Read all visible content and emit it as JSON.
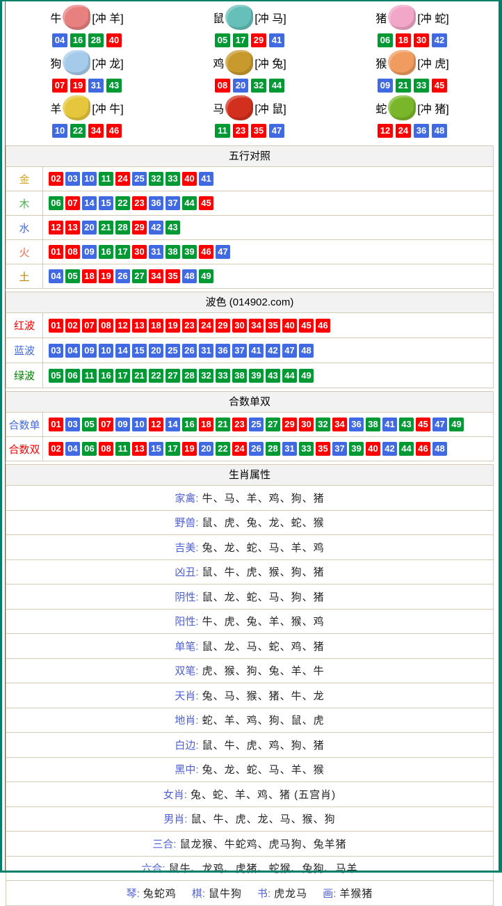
{
  "colors": {
    "frame_teal": "#00806b",
    "table_border": "#d6cbb2",
    "header_bg": "#f2f2f2",
    "chip_red": "#fb0000",
    "chip_blue": "#4169e1",
    "chip_green": "#009933",
    "attr_label_blue": "#4f5fd8"
  },
  "wave": {
    "red": [
      "01",
      "02",
      "07",
      "08",
      "12",
      "13",
      "18",
      "19",
      "23",
      "24",
      "29",
      "30",
      "34",
      "35",
      "40",
      "45",
      "46"
    ],
    "blue": [
      "03",
      "04",
      "09",
      "10",
      "14",
      "15",
      "20",
      "25",
      "26",
      "31",
      "36",
      "37",
      "41",
      "42",
      "47",
      "48"
    ],
    "green": [
      "05",
      "06",
      "11",
      "16",
      "17",
      "21",
      "22",
      "27",
      "28",
      "32",
      "33",
      "38",
      "39",
      "43",
      "44",
      "49"
    ]
  },
  "zodiac": {
    "cells": [
      {
        "name": "牛",
        "chong": "[冲 羊]",
        "icon": "ox-icon",
        "icon_color": "#e88080",
        "numbers": [
          "04",
          "16",
          "28",
          "40"
        ]
      },
      {
        "name": "鼠",
        "chong": "[冲 马]",
        "icon": "rat-icon",
        "icon_color": "#66bfb8",
        "numbers": [
          "05",
          "17",
          "29",
          "41"
        ]
      },
      {
        "name": "猪",
        "chong": "[冲 蛇]",
        "icon": "pig-icon",
        "icon_color": "#f2a6c8",
        "numbers": [
          "06",
          "18",
          "30",
          "42"
        ]
      },
      {
        "name": "狗",
        "chong": "[冲 龙]",
        "icon": "dog-icon",
        "icon_color": "#a6cbea",
        "numbers": [
          "07",
          "19",
          "31",
          "43"
        ]
      },
      {
        "name": "鸡",
        "chong": "[冲 兔]",
        "icon": "rooster-icon",
        "icon_color": "#c89a2e",
        "numbers": [
          "08",
          "20",
          "32",
          "44"
        ]
      },
      {
        "name": "猴",
        "chong": "[冲 虎]",
        "icon": "monkey-icon",
        "icon_color": "#f09b5f",
        "numbers": [
          "09",
          "21",
          "33",
          "45"
        ]
      },
      {
        "name": "羊",
        "chong": "[冲 牛]",
        "icon": "goat-icon",
        "icon_color": "#e6c63c",
        "numbers": [
          "10",
          "22",
          "34",
          "46"
        ]
      },
      {
        "name": "马",
        "chong": "[冲 鼠]",
        "icon": "horse-icon",
        "icon_color": "#d22f1e",
        "numbers": [
          "11",
          "23",
          "35",
          "47"
        ]
      },
      {
        "name": "蛇",
        "chong": "[冲 猪]",
        "icon": "snake-icon",
        "icon_color": "#7ab62a",
        "numbers": [
          "12",
          "24",
          "36",
          "48"
        ]
      }
    ]
  },
  "wuxing": {
    "title": "五行对照",
    "rows": [
      {
        "label": "金",
        "label_color": "#DAA520",
        "numbers": [
          "02",
          "03",
          "10",
          "11",
          "24",
          "25",
          "32",
          "33",
          "40",
          "41"
        ]
      },
      {
        "label": "木",
        "label_color": "#4CAF50",
        "numbers": [
          "06",
          "07",
          "14",
          "15",
          "22",
          "23",
          "36",
          "37",
          "44",
          "45"
        ]
      },
      {
        "label": "水",
        "label_color": "#4169E1",
        "numbers": [
          "12",
          "13",
          "20",
          "21",
          "28",
          "29",
          "42",
          "43"
        ]
      },
      {
        "label": "火",
        "label_color": "#F4694C",
        "numbers": [
          "01",
          "08",
          "09",
          "16",
          "17",
          "30",
          "31",
          "38",
          "39",
          "46",
          "47"
        ]
      },
      {
        "label": "土",
        "label_color": "#B8860B",
        "numbers": [
          "04",
          "05",
          "18",
          "19",
          "26",
          "27",
          "34",
          "35",
          "48",
          "49"
        ]
      }
    ]
  },
  "bose": {
    "title": "波色 (014902.com)",
    "rows": [
      {
        "label": "红波",
        "label_color": "#FE0000",
        "numbers": [
          "01",
          "02",
          "07",
          "08",
          "12",
          "13",
          "18",
          "19",
          "23",
          "24",
          "29",
          "30",
          "34",
          "35",
          "40",
          "45",
          "46"
        ]
      },
      {
        "label": "蓝波",
        "label_color": "#4169E1",
        "numbers": [
          "03",
          "04",
          "09",
          "10",
          "14",
          "15",
          "20",
          "25",
          "26",
          "31",
          "36",
          "37",
          "41",
          "42",
          "47",
          "48"
        ]
      },
      {
        "label": "绿波",
        "label_color": "#008000",
        "numbers": [
          "05",
          "06",
          "11",
          "16",
          "17",
          "21",
          "22",
          "27",
          "28",
          "32",
          "33",
          "38",
          "39",
          "43",
          "44",
          "49"
        ]
      }
    ]
  },
  "hesum": {
    "title": "合数单双",
    "rows": [
      {
        "label": "合数单",
        "label_color": "#4169E1",
        "numbers": [
          "01",
          "03",
          "05",
          "07",
          "09",
          "10",
          "12",
          "14",
          "16",
          "18",
          "21",
          "23",
          "25",
          "27",
          "29",
          "30",
          "32",
          "34",
          "36",
          "38",
          "41",
          "43",
          "45",
          "47",
          "49"
        ]
      },
      {
        "label": "合数双",
        "label_color": "#FE0000",
        "numbers": [
          "02",
          "04",
          "06",
          "08",
          "11",
          "13",
          "15",
          "17",
          "19",
          "20",
          "22",
          "24",
          "26",
          "28",
          "31",
          "33",
          "35",
          "37",
          "39",
          "40",
          "42",
          "44",
          "46",
          "48"
        ]
      }
    ]
  },
  "shengxiao": {
    "title": "生肖属性",
    "rows": [
      {
        "items": [
          {
            "label": "家禽",
            "text": "牛、马、羊、鸡、狗、猪"
          }
        ]
      },
      {
        "items": [
          {
            "label": "野兽",
            "text": "鼠、虎、兔、龙、蛇、猴"
          }
        ]
      },
      {
        "items": [
          {
            "label": "吉美",
            "text": "兔、龙、蛇、马、羊、鸡"
          }
        ]
      },
      {
        "items": [
          {
            "label": "凶丑",
            "text": "鼠、牛、虎、猴、狗、猪"
          }
        ]
      },
      {
        "items": [
          {
            "label": "阴性",
            "text": "鼠、龙、蛇、马、狗、猪"
          }
        ]
      },
      {
        "items": [
          {
            "label": "阳性",
            "text": "牛、虎、兔、羊、猴、鸡"
          }
        ]
      },
      {
        "items": [
          {
            "label": "单笔",
            "text": "鼠、龙、马、蛇、鸡、猪"
          }
        ]
      },
      {
        "items": [
          {
            "label": "双笔",
            "text": "虎、猴、狗、兔、羊、牛"
          }
        ]
      },
      {
        "items": [
          {
            "label": "天肖",
            "text": "兔、马、猴、猪、牛、龙"
          }
        ]
      },
      {
        "items": [
          {
            "label": "地肖",
            "text": "蛇、羊、鸡、狗、鼠、虎"
          }
        ]
      },
      {
        "items": [
          {
            "label": "白边",
            "text": "鼠、牛、虎、鸡、狗、猪"
          }
        ]
      },
      {
        "items": [
          {
            "label": "黑中",
            "text": "兔、龙、蛇、马、羊、猴"
          }
        ]
      },
      {
        "items": [
          {
            "label": "女肖",
            "text": "兔、蛇、羊、鸡、猪 (五宫肖)"
          }
        ]
      },
      {
        "items": [
          {
            "label": "男肖",
            "text": "鼠、牛、虎、龙、马、猴、狗"
          }
        ]
      },
      {
        "items": [
          {
            "label": "三合",
            "text": "鼠龙猴、牛蛇鸡、虎马狗、兔羊猪"
          }
        ]
      },
      {
        "items": [
          {
            "label": "六合",
            "text": "鼠牛、龙鸡、虎猪、蛇猴、兔狗、马羊"
          }
        ]
      },
      {
        "items": [
          {
            "label": "琴",
            "text": "兔蛇鸡"
          },
          {
            "label": "棋",
            "text": "鼠牛狗"
          },
          {
            "label": "书",
            "text": "虎龙马"
          },
          {
            "label": "画",
            "text": "羊猴猪"
          }
        ]
      }
    ]
  }
}
